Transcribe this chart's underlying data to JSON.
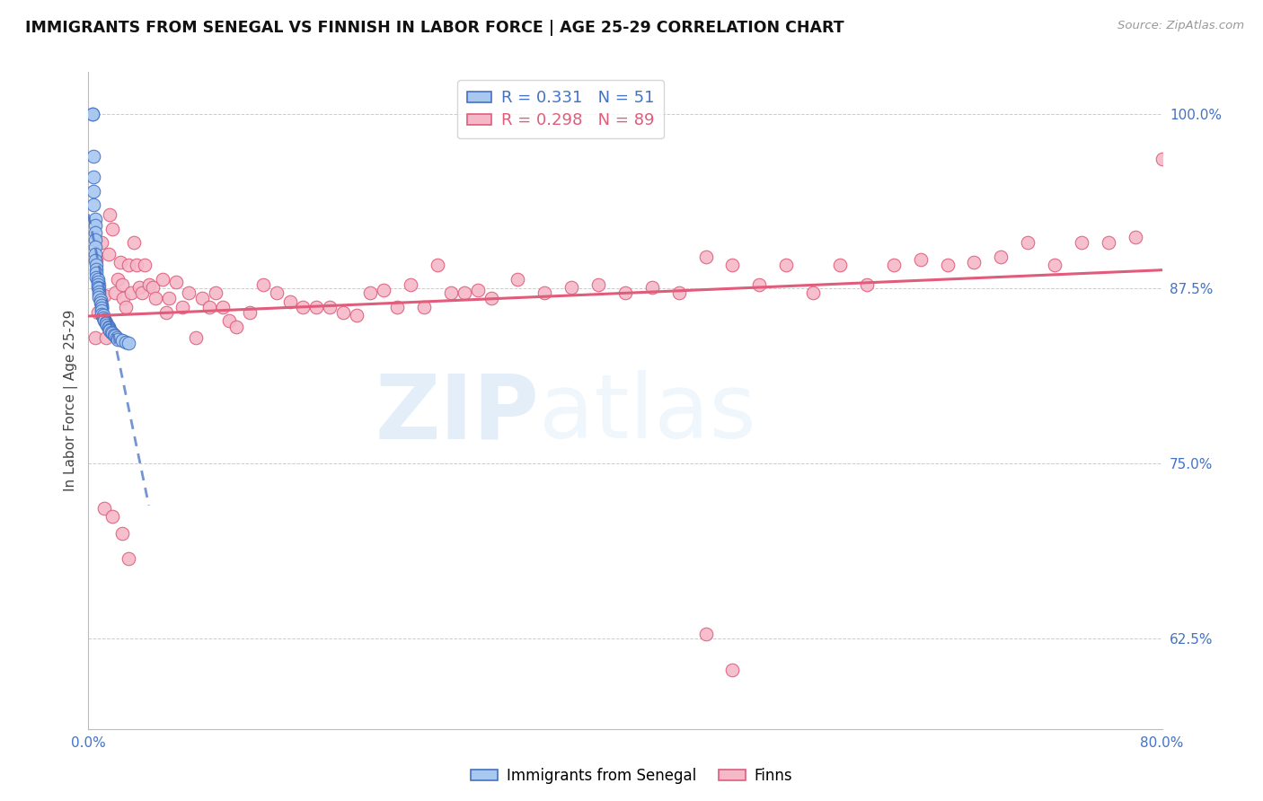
{
  "title": "IMMIGRANTS FROM SENEGAL VS FINNISH IN LABOR FORCE | AGE 25-29 CORRELATION CHART",
  "source": "Source: ZipAtlas.com",
  "ylabel": "In Labor Force | Age 25-29",
  "xlim": [
    0.0,
    0.8
  ],
  "ylim": [
    0.56,
    1.03
  ],
  "yticks_right": [
    0.625,
    0.75,
    0.875,
    1.0
  ],
  "ytick_labels_right": [
    "62.5%",
    "75.0%",
    "87.5%",
    "100.0%"
  ],
  "legend_blue_r": "0.331",
  "legend_blue_n": "51",
  "legend_pink_r": "0.298",
  "legend_pink_n": "89",
  "blue_color": "#a8c8f0",
  "pink_color": "#f5b8c8",
  "blue_edge_color": "#4472C4",
  "pink_edge_color": "#E05C7A",
  "blue_line_color": "#4472C4",
  "pink_line_color": "#E05C7A",
  "watermark_zip": "ZIP",
  "watermark_atlas": "atlas",
  "blue_scatter_x": [
    0.003,
    0.003,
    0.004,
    0.004,
    0.004,
    0.004,
    0.005,
    0.005,
    0.005,
    0.005,
    0.005,
    0.005,
    0.005,
    0.006,
    0.006,
    0.006,
    0.006,
    0.007,
    0.007,
    0.007,
    0.007,
    0.008,
    0.008,
    0.008,
    0.008,
    0.009,
    0.009,
    0.01,
    0.01,
    0.01,
    0.01,
    0.011,
    0.011,
    0.012,
    0.012,
    0.013,
    0.013,
    0.014,
    0.015,
    0.015,
    0.016,
    0.016,
    0.017,
    0.018,
    0.019,
    0.02,
    0.021,
    0.022,
    0.025,
    0.028,
    0.03
  ],
  "blue_scatter_y": [
    1.0,
    1.0,
    0.97,
    0.955,
    0.945,
    0.935,
    0.925,
    0.92,
    0.915,
    0.91,
    0.905,
    0.9,
    0.895,
    0.892,
    0.889,
    0.886,
    0.883,
    0.882,
    0.88,
    0.878,
    0.876,
    0.875,
    0.873,
    0.871,
    0.869,
    0.867,
    0.865,
    0.863,
    0.861,
    0.859,
    0.857,
    0.856,
    0.854,
    0.853,
    0.852,
    0.851,
    0.85,
    0.849,
    0.848,
    0.847,
    0.846,
    0.845,
    0.844,
    0.843,
    0.842,
    0.841,
    0.84,
    0.839,
    0.838,
    0.837,
    0.836
  ],
  "pink_scatter_x": [
    0.005,
    0.006,
    0.007,
    0.008,
    0.01,
    0.012,
    0.013,
    0.015,
    0.016,
    0.018,
    0.02,
    0.022,
    0.024,
    0.025,
    0.026,
    0.028,
    0.03,
    0.032,
    0.034,
    0.036,
    0.038,
    0.04,
    0.042,
    0.045,
    0.048,
    0.05,
    0.055,
    0.058,
    0.06,
    0.065,
    0.07,
    0.075,
    0.08,
    0.085,
    0.09,
    0.095,
    0.1,
    0.105,
    0.11,
    0.12,
    0.13,
    0.14,
    0.15,
    0.16,
    0.17,
    0.18,
    0.19,
    0.2,
    0.21,
    0.22,
    0.23,
    0.24,
    0.25,
    0.26,
    0.27,
    0.28,
    0.29,
    0.3,
    0.32,
    0.34,
    0.36,
    0.38,
    0.4,
    0.42,
    0.44,
    0.46,
    0.48,
    0.5,
    0.52,
    0.54,
    0.56,
    0.58,
    0.6,
    0.62,
    0.64,
    0.66,
    0.68,
    0.7,
    0.72,
    0.74,
    0.76,
    0.78,
    0.8,
    0.46,
    0.48,
    0.012,
    0.018,
    0.025,
    0.03
  ],
  "pink_scatter_y": [
    0.84,
    0.895,
    0.858,
    0.878,
    0.908,
    0.87,
    0.84,
    0.9,
    0.928,
    0.918,
    0.872,
    0.882,
    0.894,
    0.878,
    0.868,
    0.862,
    0.892,
    0.872,
    0.908,
    0.892,
    0.876,
    0.872,
    0.892,
    0.878,
    0.876,
    0.868,
    0.882,
    0.858,
    0.868,
    0.88,
    0.862,
    0.872,
    0.84,
    0.868,
    0.862,
    0.872,
    0.862,
    0.852,
    0.848,
    0.858,
    0.878,
    0.872,
    0.866,
    0.862,
    0.862,
    0.862,
    0.858,
    0.856,
    0.872,
    0.874,
    0.862,
    0.878,
    0.862,
    0.892,
    0.872,
    0.872,
    0.874,
    0.868,
    0.882,
    0.872,
    0.876,
    0.878,
    0.872,
    0.876,
    0.872,
    0.898,
    0.892,
    0.878,
    0.892,
    0.872,
    0.892,
    0.878,
    0.892,
    0.896,
    0.892,
    0.894,
    0.898,
    0.908,
    0.892,
    0.908,
    0.908,
    0.912,
    0.968,
    0.628,
    0.602,
    0.718,
    0.712,
    0.7,
    0.682
  ]
}
